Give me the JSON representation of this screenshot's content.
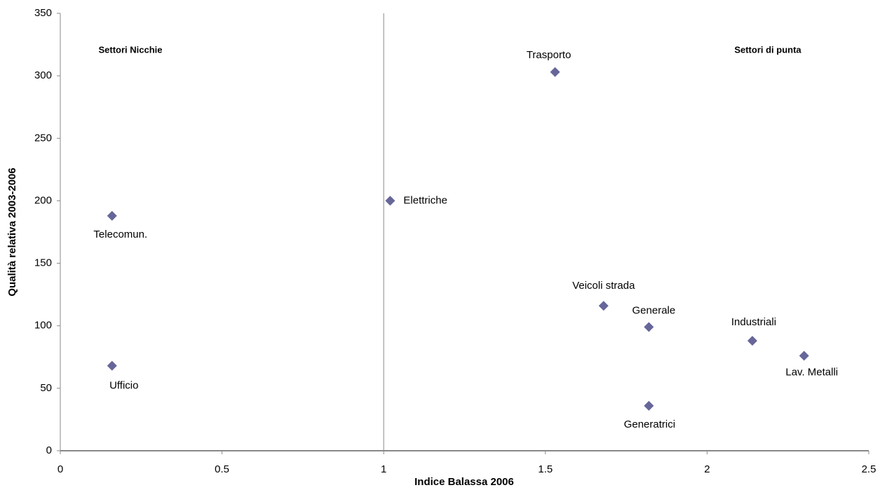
{
  "chart_data": {
    "type": "scatter",
    "xlabel": "Indice Balassa 2006",
    "ylabel": "Qualità relativa 2003-2006",
    "labels": [
      "Telecomun.",
      "Ufficio",
      "Elettriche",
      "Trasporto",
      "Veicoli strada",
      "Generale",
      "Generatrici",
      "Industriali",
      "Lav. Metalli"
    ],
    "x": [
      0.16,
      0.16,
      1.02,
      1.53,
      1.68,
      1.82,
      1.82,
      2.14,
      2.3
    ],
    "values": [
      188,
      68,
      200,
      303,
      116,
      99,
      36,
      88,
      76
    ],
    "color": "#666699",
    "xlim": [
      0,
      2.5
    ],
    "xticks": [
      0,
      0.5,
      1,
      1.5,
      2,
      2.5
    ],
    "ylim": [
      0,
      350
    ],
    "yticks": [
      0,
      50,
      100,
      150,
      200,
      250,
      300,
      350
    ],
    "vline": 1,
    "annotations": [
      "Settori Nicchie",
      "Settori di punta"
    ],
    "grid": false
  }
}
